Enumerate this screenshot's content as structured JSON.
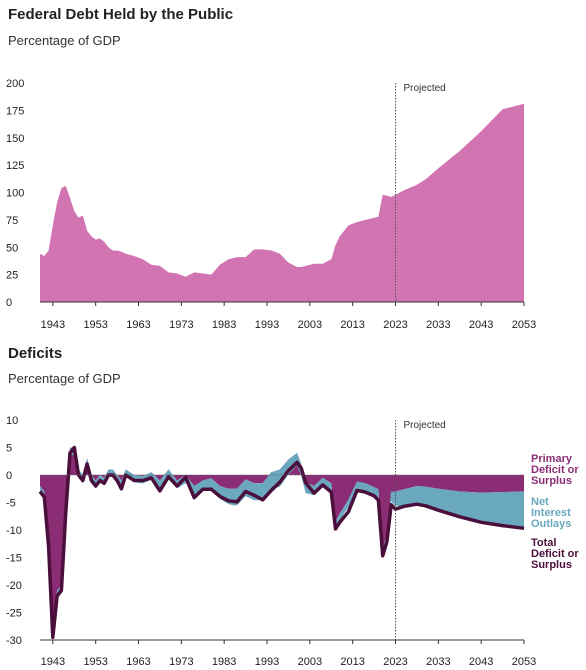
{
  "chart_data": [
    {
      "type": "area",
      "title": "Federal Debt Held by the Public",
      "subtitle": "Percentage of GDP",
      "annotation": "Projected",
      "projection_start": 2023,
      "color": "#d174b1",
      "ylim": [
        0,
        200
      ],
      "yticks": [
        0,
        25,
        50,
        75,
        100,
        125,
        150,
        175,
        200
      ],
      "xlim": [
        1940,
        2053
      ],
      "xticks": [
        1943,
        1953,
        1963,
        1973,
        1983,
        1993,
        2003,
        2013,
        2023,
        2033,
        2043,
        2053
      ],
      "series": [
        {
          "x": [
            1940,
            1941,
            1942,
            1943,
            1944,
            1945,
            1946,
            1947,
            1948,
            1949,
            1950,
            1951,
            1952,
            1953,
            1954,
            1955,
            1956,
            1957,
            1958,
            1959,
            1960,
            1962,
            1964,
            1966,
            1968,
            1970,
            1972,
            1974,
            1976,
            1978,
            1980,
            1982,
            1984,
            1986,
            1988,
            1990,
            1992,
            1994,
            1996,
            1998,
            2000,
            2001,
            2002,
            2004,
            2006,
            2008,
            2009,
            2010,
            2012,
            2014,
            2016,
            2018,
            2019,
            2020,
            2021,
            2022,
            2023,
            2025,
            2028,
            2030,
            2033,
            2038,
            2043,
            2048,
            2053
          ],
          "values": [
            44,
            42,
            47,
            70,
            91,
            104,
            106,
            95,
            83,
            77,
            79,
            65,
            60,
            57,
            58,
            55,
            50,
            47,
            47,
            46,
            44,
            42,
            39,
            34,
            33,
            27,
            26,
            23,
            27,
            26,
            25,
            34,
            39,
            41,
            41,
            48,
            48,
            47,
            44,
            36,
            32,
            32,
            33,
            35,
            35,
            39,
            52,
            60,
            70,
            73,
            75,
            77,
            78,
            98,
            97,
            96,
            98,
            102,
            107,
            112,
            122,
            138,
            156,
            176,
            181
          ]
        }
      ]
    },
    {
      "type": "area",
      "title": "Deficits",
      "subtitle": "Percentage of GDP",
      "annotation": "Projected",
      "projection_start": 2023,
      "ylim": [
        -30,
        10
      ],
      "yticks": [
        10,
        5,
        0,
        -5,
        -10,
        -15,
        -20,
        -25,
        -30
      ],
      "xlim": [
        1940,
        2053
      ],
      "xticks": [
        1943,
        1953,
        1963,
        1973,
        1983,
        1993,
        2003,
        2013,
        2023,
        2033,
        2043,
        2053
      ],
      "series": [
        {
          "name": "Primary Deficit or Surplus",
          "color": "#8a2d74",
          "x": [
            1940,
            1941,
            1942,
            1943,
            1944,
            1945,
            1946,
            1947,
            1948,
            1949,
            1950,
            1951,
            1952,
            1953,
            1954,
            1955,
            1956,
            1957,
            1958,
            1959,
            1960,
            1962,
            1964,
            1966,
            1968,
            1970,
            1972,
            1974,
            1976,
            1978,
            1980,
            1982,
            1984,
            1986,
            1988,
            1990,
            1992,
            1994,
            1996,
            1998,
            2000,
            2001,
            2002,
            2004,
            2006,
            2008,
            2009,
            2010,
            2012,
            2014,
            2016,
            2018,
            2019,
            2020,
            2021,
            2022,
            2023,
            2025,
            2028,
            2030,
            2033,
            2038,
            2043,
            2048,
            2053
          ],
          "values": [
            -2,
            -3,
            -12,
            -27,
            -21,
            -20,
            -6,
            5,
            5,
            1,
            0,
            3,
            0,
            -1,
            0,
            -0.5,
            1,
            1,
            0,
            -1,
            1,
            0,
            -0.2,
            0.5,
            -1,
            1,
            -1,
            0,
            -2,
            -1,
            -0.6,
            -2,
            -2.5,
            -2.5,
            -0.8,
            -1.5,
            -1.5,
            0.5,
            1,
            2.8,
            4,
            2,
            -1.3,
            -2,
            -0.5,
            -1.5,
            -8.5,
            -7,
            -4.5,
            -1.2,
            -1.5,
            -2.2,
            -2.6,
            -13.5,
            -10.5,
            -3,
            -3,
            -2.6,
            -2,
            -2.1,
            -2.5,
            -3,
            -3.2,
            -3.1,
            -3
          ]
        },
        {
          "name": "Net Interest Outlays",
          "color": "#6aa8c0",
          "x": [
            1940,
            1950,
            1960,
            1970,
            1975,
            1980,
            1985,
            1990,
            1996,
            2000,
            2005,
            2010,
            2015,
            2020,
            2021,
            2022,
            2023,
            2025,
            2028,
            2030,
            2033,
            2038,
            2043,
            2048,
            2053
          ],
          "values": [
            -1,
            -1.5,
            -1.3,
            -1.4,
            -1.5,
            -1.9,
            -3,
            -3.1,
            -3.1,
            -2.3,
            -1.5,
            -1.3,
            -1.3,
            -1.6,
            -1.6,
            -1.8,
            -2.6,
            -3.1,
            -3.3,
            -3.5,
            -3.9,
            -4.6,
            -5.4,
            -6.1,
            -6.7
          ]
        },
        {
          "name": "Total Deficit or Surplus",
          "color": "#4a0f3a",
          "x": [
            1940,
            1941,
            1942,
            1943,
            1944,
            1945,
            1946,
            1947,
            1948,
            1949,
            1950,
            1951,
            1952,
            1953,
            1954,
            1955,
            1956,
            1957,
            1958,
            1959,
            1960,
            1962,
            1964,
            1966,
            1968,
            1970,
            1972,
            1974,
            1976,
            1978,
            1980,
            1982,
            1984,
            1986,
            1988,
            1990,
            1992,
            1994,
            1996,
            1998,
            2000,
            2001,
            2002,
            2004,
            2006,
            2008,
            2009,
            2010,
            2012,
            2014,
            2016,
            2018,
            2019,
            2020,
            2021,
            2022,
            2023,
            2025,
            2028,
            2030,
            2033,
            2038,
            2043,
            2048,
            2053
          ],
          "values": [
            -3,
            -4,
            -13,
            -29.5,
            -22,
            -21,
            -7,
            4,
            5,
            0,
            -1,
            2,
            -1,
            -2,
            -1,
            -1.5,
            0,
            0,
            -1,
            -2.5,
            0,
            -1,
            -1,
            -0.5,
            -2.9,
            -0.3,
            -2,
            -0.4,
            -4.1,
            -2.6,
            -2.6,
            -3.9,
            -4.7,
            -4.9,
            -3.0,
            -3.7,
            -4.5,
            -2.8,
            -1.3,
            0.8,
            2.3,
            1.2,
            -1.4,
            -3.3,
            -1.8,
            -3.1,
            -9.8,
            -8.6,
            -6.7,
            -2.8,
            -3.1,
            -3.8,
            -4.6,
            -14.7,
            -12.1,
            -5.4,
            -6.2,
            -5.7,
            -5.3,
            -5.6,
            -6.4,
            -7.6,
            -8.6,
            -9.2,
            -9.7
          ]
        }
      ]
    }
  ]
}
